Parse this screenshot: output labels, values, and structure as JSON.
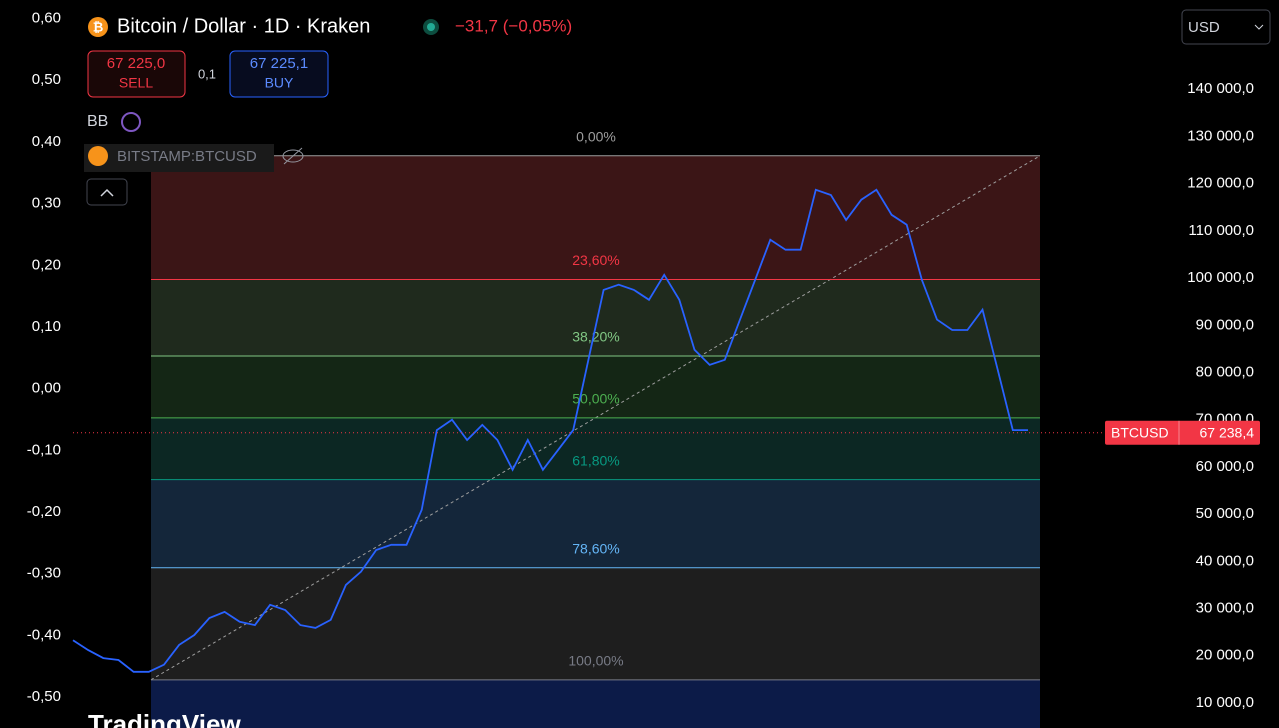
{
  "header": {
    "symbol_icon": "₿",
    "title": "Bitcoin / Dollar · 1D · Kraken",
    "change": "−31,7 (−0,05%)",
    "sell_price": "67 225,0",
    "sell": "SELL",
    "spread": "0,1",
    "buy_price": "67 225,1",
    "buy": "BUY",
    "indicator": "BB",
    "compare_symbol": "BITSTAMP:BTCUSD",
    "currency": "USD",
    "watermark": "TradingView"
  },
  "chart_data": {
    "type": "line",
    "series": [
      {
        "name": "BTCUSD",
        "color": "#2962ff",
        "values": [
          23300,
          21200,
          19500,
          19100,
          16600,
          16600,
          18100,
          22300,
          24400,
          28000,
          29300,
          27200,
          26500,
          30800,
          29700,
          26500,
          25900,
          27600,
          35000,
          37800,
          42400,
          43500,
          43500,
          50900,
          67800,
          70000,
          65700,
          68900,
          65700,
          59400,
          65700,
          59400,
          63600,
          67800,
          82700,
          97500,
          98600,
          97500,
          95400,
          100700,
          95400,
          84800,
          81600,
          82700,
          91200,
          99600,
          108100,
          106000,
          106000,
          118700,
          117600,
          112300,
          116600,
          118700,
          113400,
          111300,
          99600,
          91200,
          89000,
          89000,
          93300,
          80600,
          67800,
          67800
        ]
      }
    ],
    "last_price": {
      "value": 67238.4,
      "label": "67 238,4"
    },
    "ylim": [
      4700,
      158900
    ],
    "yticks": [
      {
        "value": 10000,
        "label": "10 000,0"
      },
      {
        "value": 20000,
        "label": "20 000,0"
      },
      {
        "value": 30000,
        "label": "30 000,0"
      },
      {
        "value": 40000,
        "label": "40 000,0"
      },
      {
        "value": 50000,
        "label": "50 000,0"
      },
      {
        "value": 60000,
        "label": "60 000,0"
      },
      {
        "value": 70000,
        "label": "70 000,0"
      },
      {
        "value": 80000,
        "label": "80 000,0"
      },
      {
        "value": 90000,
        "label": "90 000,0"
      },
      {
        "value": 100000,
        "label": "100 000,0"
      },
      {
        "value": 110000,
        "label": "110 000,0"
      },
      {
        "value": 120000,
        "label": "120 000,0"
      },
      {
        "value": 130000,
        "label": "130 000,0"
      },
      {
        "value": 140000,
        "label": "140 000,0"
      }
    ],
    "y2lim": [
      -0.55,
      0.63
    ],
    "y2ticks": [
      {
        "value": 0.6,
        "label": "0,60"
      },
      {
        "value": 0.5,
        "label": "0,50"
      },
      {
        "value": 0.4,
        "label": "0,40"
      },
      {
        "value": 0.3,
        "label": "0,30"
      },
      {
        "value": 0.2,
        "label": "0,20"
      },
      {
        "value": 0.1,
        "label": "0,10"
      },
      {
        "value": 0,
        "label": "0,00"
      },
      {
        "value": -0.1,
        "label": "-0,10"
      },
      {
        "value": -0.2,
        "label": "-0,20"
      },
      {
        "value": -0.3,
        "label": "-0,30"
      },
      {
        "value": -0.4,
        "label": "-0,40"
      },
      {
        "value": -0.5,
        "label": "-0,50"
      }
    ],
    "fib_levels": [
      {
        "label": "0,00%",
        "price": 125900,
        "color": "#9e9e9e",
        "fill": "#3b1516"
      },
      {
        "label": "23,60%",
        "price": 99700,
        "color": "#f23645",
        "fill": "#1f2a1d"
      },
      {
        "label": "38,20%",
        "price": 83500,
        "color": "#81c784",
        "fill": "#142615"
      },
      {
        "label": "50,00%",
        "price": 70400,
        "color": "#4caf50",
        "fill": "#0c2723"
      },
      {
        "label": "61,80%",
        "price": 57300,
        "color": "#089981",
        "fill": "#14263a"
      },
      {
        "label": "78,60%",
        "price": 38650,
        "color": "#64b5f6",
        "fill": "#1e1e1e"
      },
      {
        "label": "100,00%",
        "price": 14900,
        "color": "#787b86",
        "fill": "#0c1b48"
      }
    ]
  }
}
